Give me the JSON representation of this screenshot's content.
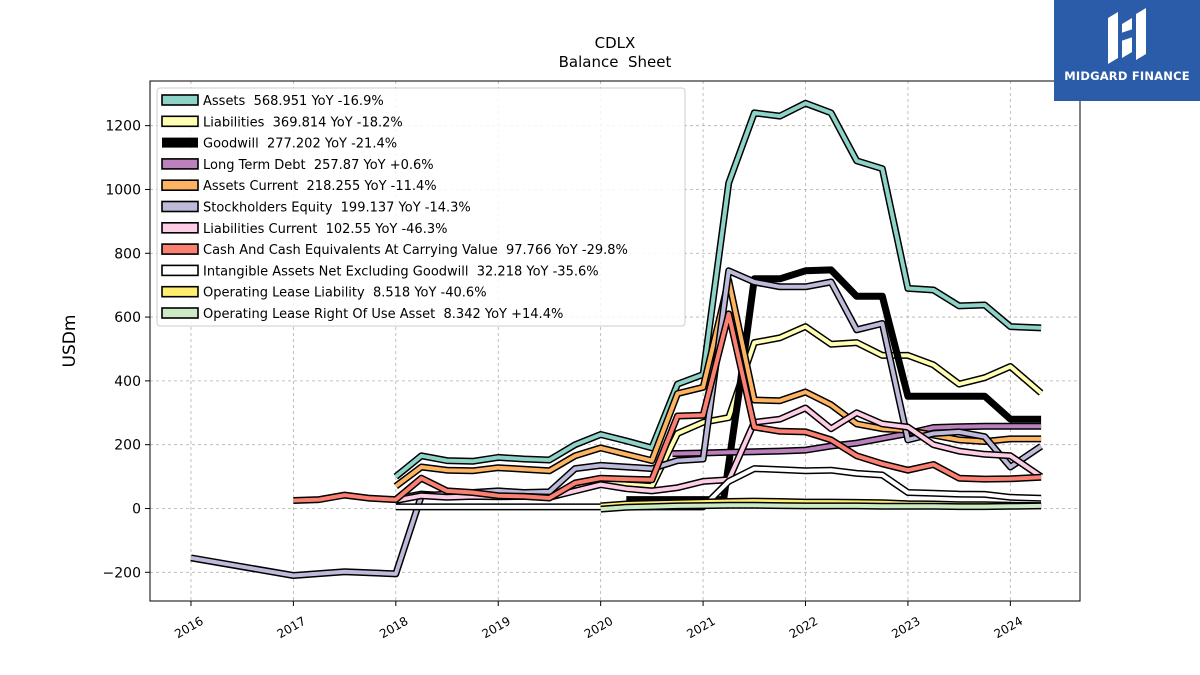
{
  "logo": {
    "text": "MIDGARD FINANCE",
    "bg": "#2a5caa"
  },
  "chart_data": {
    "type": "line",
    "title": "CDLX",
    "subtitle": "Balance  Sheet",
    "xlabel": "",
    "ylabel": "USDm",
    "xlim": [
      2015.6,
      2024.68
    ],
    "ylim": [
      -290,
      1340
    ],
    "yticks": [
      -200,
      0,
      200,
      400,
      600,
      800,
      1000,
      1200
    ],
    "yticklabels": [
      "−200",
      "0",
      "200",
      "400",
      "600",
      "800",
      "1000",
      "1200"
    ],
    "xticks": [
      2016,
      2017,
      2018,
      2019,
      2020,
      2021,
      2022,
      2023,
      2024
    ],
    "xticklabels": [
      "2016",
      "2017",
      "2018",
      "2019",
      "2020",
      "2021",
      "2022",
      "2023",
      "2024"
    ],
    "grid": true,
    "legend_position": "top-left",
    "series": [
      {
        "name": "Assets",
        "legend": "Assets  568.951 YoY -16.9%",
        "color": "#8dd3c7",
        "width": 4,
        "points": [
          [
            2018.0,
            100
          ],
          [
            2018.25,
            165
          ],
          [
            2018.5,
            150
          ],
          [
            2018.75,
            148
          ],
          [
            2019.0,
            160
          ],
          [
            2019.25,
            155
          ],
          [
            2019.5,
            152
          ],
          [
            2019.75,
            200
          ],
          [
            2020.0,
            232
          ],
          [
            2020.25,
            212
          ],
          [
            2020.5,
            190
          ],
          [
            2020.75,
            390
          ],
          [
            2021.0,
            420
          ],
          [
            2021.25,
            1020
          ],
          [
            2021.5,
            1240
          ],
          [
            2021.75,
            1230
          ],
          [
            2022.0,
            1270
          ],
          [
            2022.25,
            1240
          ],
          [
            2022.5,
            1090
          ],
          [
            2022.75,
            1065
          ],
          [
            2023.0,
            690
          ],
          [
            2023.25,
            685
          ],
          [
            2023.5,
            635
          ],
          [
            2023.75,
            638
          ],
          [
            2024.0,
            570
          ],
          [
            2024.3,
            566
          ]
        ]
      },
      {
        "name": "Liabilities",
        "legend": "Liabilities  369.814 YoY -18.2%",
        "color": "#ffffb3",
        "width": 4,
        "points": [
          [
            2018.0,
            30
          ],
          [
            2018.25,
            45
          ],
          [
            2018.5,
            40
          ],
          [
            2018.75,
            43
          ],
          [
            2019.0,
            42
          ],
          [
            2019.25,
            42
          ],
          [
            2019.5,
            40
          ],
          [
            2019.75,
            65
          ],
          [
            2020.0,
            85
          ],
          [
            2020.25,
            75
          ],
          [
            2020.5,
            70
          ],
          [
            2020.75,
            235
          ],
          [
            2021.0,
            270
          ],
          [
            2021.25,
            285
          ],
          [
            2021.5,
            520
          ],
          [
            2021.75,
            535
          ],
          [
            2022.0,
            570
          ],
          [
            2022.25,
            515
          ],
          [
            2022.5,
            520
          ],
          [
            2022.75,
            480
          ],
          [
            2023.0,
            480
          ],
          [
            2023.25,
            450
          ],
          [
            2023.5,
            390
          ],
          [
            2023.75,
            410
          ],
          [
            2024.0,
            445
          ],
          [
            2024.3,
            362
          ]
        ]
      },
      {
        "name": "Goodwill",
        "legend": "Goodwill  277.202 YoY -21.4%",
        "color": "#000000",
        "width": 7,
        "points": [
          [
            2020.25,
            28
          ],
          [
            2020.5,
            28
          ],
          [
            2020.75,
            28
          ],
          [
            2021.0,
            28
          ],
          [
            2021.2,
            28
          ],
          [
            2021.35,
            360
          ],
          [
            2021.5,
            720
          ],
          [
            2021.75,
            720
          ],
          [
            2022.0,
            745
          ],
          [
            2022.25,
            748
          ],
          [
            2022.5,
            665
          ],
          [
            2022.75,
            665
          ],
          [
            2023.0,
            352
          ],
          [
            2023.25,
            352
          ],
          [
            2023.5,
            352
          ],
          [
            2023.75,
            352
          ],
          [
            2024.0,
            280
          ],
          [
            2024.3,
            280
          ]
        ]
      },
      {
        "name": "Long Term Debt",
        "legend": "Long Term Debt  257.87 YoY +0.6%",
        "color": "#bc80bd",
        "width": 4,
        "points": [
          [
            2020.7,
            172
          ],
          [
            2021.0,
            174
          ],
          [
            2021.25,
            176
          ],
          [
            2021.5,
            178
          ],
          [
            2021.75,
            180
          ],
          [
            2022.0,
            183
          ],
          [
            2022.25,
            196
          ],
          [
            2022.5,
            205
          ],
          [
            2022.75,
            220
          ],
          [
            2023.0,
            235
          ],
          [
            2023.25,
            254
          ],
          [
            2023.5,
            256
          ],
          [
            2023.75,
            258
          ],
          [
            2024.0,
            258
          ],
          [
            2024.3,
            258
          ]
        ]
      },
      {
        "name": "Assets Current",
        "legend": "Assets Current  218.255 YoY -11.4%",
        "color": "#fdb462",
        "width": 4,
        "points": [
          [
            2018.0,
            70
          ],
          [
            2018.25,
            130
          ],
          [
            2018.5,
            120
          ],
          [
            2018.75,
            118
          ],
          [
            2019.0,
            128
          ],
          [
            2019.25,
            123
          ],
          [
            2019.5,
            118
          ],
          [
            2019.75,
            165
          ],
          [
            2020.0,
            190
          ],
          [
            2020.25,
            170
          ],
          [
            2020.5,
            150
          ],
          [
            2020.75,
            360
          ],
          [
            2021.0,
            380
          ],
          [
            2021.25,
            715
          ],
          [
            2021.5,
            340
          ],
          [
            2021.75,
            338
          ],
          [
            2022.0,
            365
          ],
          [
            2022.25,
            325
          ],
          [
            2022.5,
            265
          ],
          [
            2022.75,
            250
          ],
          [
            2023.0,
            245
          ],
          [
            2023.25,
            230
          ],
          [
            2023.5,
            215
          ],
          [
            2023.75,
            210
          ],
          [
            2024.0,
            218
          ],
          [
            2024.3,
            218
          ]
        ]
      },
      {
        "name": "Stockholders Equity",
        "legend": "Stockholders Equity  199.137 YoY -14.3%",
        "color": "#bebada",
        "width": 4,
        "points": [
          [
            2016.0,
            -155
          ],
          [
            2017.0,
            -210
          ],
          [
            2017.5,
            -198
          ],
          [
            2018.0,
            -205
          ],
          [
            2018.25,
            40
          ],
          [
            2018.5,
            45
          ],
          [
            2018.75,
            50
          ],
          [
            2019.0,
            55
          ],
          [
            2019.25,
            50
          ],
          [
            2019.5,
            52
          ],
          [
            2019.75,
            125
          ],
          [
            2020.0,
            135
          ],
          [
            2020.25,
            130
          ],
          [
            2020.5,
            125
          ],
          [
            2020.75,
            150
          ],
          [
            2021.0,
            155
          ],
          [
            2021.25,
            745
          ],
          [
            2021.5,
            710
          ],
          [
            2021.75,
            695
          ],
          [
            2022.0,
            695
          ],
          [
            2022.25,
            710
          ],
          [
            2022.5,
            560
          ],
          [
            2022.75,
            580
          ],
          [
            2023.0,
            215
          ],
          [
            2023.25,
            235
          ],
          [
            2023.5,
            240
          ],
          [
            2023.75,
            225
          ],
          [
            2024.0,
            130
          ],
          [
            2024.3,
            195
          ]
        ]
      },
      {
        "name": "Liabilities Current",
        "legend": "Liabilities Current  102.55 YoY -46.3%",
        "color": "#fccde5",
        "width": 4,
        "points": [
          [
            2018.0,
            25
          ],
          [
            2018.25,
            40
          ],
          [
            2018.5,
            35
          ],
          [
            2018.75,
            38
          ],
          [
            2019.0,
            37
          ],
          [
            2019.25,
            38
          ],
          [
            2019.5,
            35
          ],
          [
            2019.75,
            55
          ],
          [
            2020.0,
            75
          ],
          [
            2020.25,
            62
          ],
          [
            2020.5,
            55
          ],
          [
            2020.75,
            65
          ],
          [
            2021.0,
            85
          ],
          [
            2021.25,
            90
          ],
          [
            2021.5,
            270
          ],
          [
            2021.75,
            280
          ],
          [
            2022.0,
            315
          ],
          [
            2022.25,
            250
          ],
          [
            2022.5,
            300
          ],
          [
            2022.75,
            265
          ],
          [
            2023.0,
            255
          ],
          [
            2023.25,
            200
          ],
          [
            2023.5,
            180
          ],
          [
            2023.75,
            170
          ],
          [
            2024.0,
            165
          ],
          [
            2024.3,
            100
          ]
        ]
      },
      {
        "name": "Cash And Cash Equivalents At Carrying Value",
        "legend": "Cash And Cash Equivalents At Carrying Value  97.766 YoY -29.8%",
        "color": "#fb8072",
        "width": 4,
        "points": [
          [
            2017.0,
            25
          ],
          [
            2017.25,
            28
          ],
          [
            2017.5,
            42
          ],
          [
            2017.75,
            32
          ],
          [
            2018.0,
            28
          ],
          [
            2018.25,
            95
          ],
          [
            2018.5,
            55
          ],
          [
            2018.75,
            50
          ],
          [
            2019.0,
            40
          ],
          [
            2019.25,
            38
          ],
          [
            2019.5,
            33
          ],
          [
            2019.75,
            80
          ],
          [
            2020.0,
            95
          ],
          [
            2020.25,
            92
          ],
          [
            2020.5,
            90
          ],
          [
            2020.75,
            290
          ],
          [
            2021.0,
            292
          ],
          [
            2021.25,
            610
          ],
          [
            2021.5,
            255
          ],
          [
            2021.75,
            242
          ],
          [
            2022.0,
            240
          ],
          [
            2022.25,
            215
          ],
          [
            2022.5,
            165
          ],
          [
            2022.75,
            140
          ],
          [
            2023.0,
            120
          ],
          [
            2023.25,
            138
          ],
          [
            2023.5,
            95
          ],
          [
            2023.75,
            92
          ],
          [
            2024.0,
            93
          ],
          [
            2024.3,
            98
          ]
        ]
      },
      {
        "name": "Intangible Assets Net Excluding Goodwill",
        "legend": "Intangible Assets Net Excluding Goodwill  32.218 YoY -35.6%",
        "color": "#ffffff",
        "width": 4,
        "points": [
          [
            2018.0,
            5
          ],
          [
            2018.25,
            5
          ],
          [
            2018.5,
            5
          ],
          [
            2018.75,
            5
          ],
          [
            2019.0,
            5
          ],
          [
            2019.25,
            5
          ],
          [
            2019.5,
            5
          ],
          [
            2019.75,
            5
          ],
          [
            2020.0,
            5
          ],
          [
            2020.25,
            5
          ],
          [
            2020.5,
            5
          ],
          [
            2020.75,
            5
          ],
          [
            2021.0,
            5
          ],
          [
            2021.25,
            85
          ],
          [
            2021.5,
            125
          ],
          [
            2021.75,
            122
          ],
          [
            2022.0,
            118
          ],
          [
            2022.25,
            120
          ],
          [
            2022.5,
            110
          ],
          [
            2022.75,
            105
          ],
          [
            2023.0,
            50
          ],
          [
            2023.25,
            48
          ],
          [
            2023.5,
            45
          ],
          [
            2023.75,
            44
          ],
          [
            2024.0,
            35
          ],
          [
            2024.3,
            32
          ]
        ]
      },
      {
        "name": "Operating Lease Liability",
        "legend": "Operating Lease Liability  8.518 YoY -40.6%",
        "color": "#ffed6f",
        "width": 4,
        "points": [
          [
            2020.0,
            8
          ],
          [
            2020.25,
            14
          ],
          [
            2020.5,
            16
          ],
          [
            2020.75,
            18
          ],
          [
            2021.0,
            20
          ],
          [
            2021.25,
            22
          ],
          [
            2021.5,
            23
          ],
          [
            2021.75,
            22
          ],
          [
            2022.0,
            20
          ],
          [
            2022.25,
            20
          ],
          [
            2022.5,
            19
          ],
          [
            2022.75,
            18
          ],
          [
            2023.0,
            15
          ],
          [
            2023.25,
            14
          ],
          [
            2023.5,
            12
          ],
          [
            2023.75,
            12
          ],
          [
            2024.0,
            10
          ],
          [
            2024.3,
            9
          ]
        ]
      },
      {
        "name": "Operating Lease Right Of Use Asset",
        "legend": "Operating Lease Right Of Use Asset  8.342 YoY +14.4%",
        "color": "#ccebc5",
        "width": 4,
        "points": [
          [
            2020.0,
            -2
          ],
          [
            2020.25,
            4
          ],
          [
            2020.5,
            6
          ],
          [
            2020.75,
            8
          ],
          [
            2021.0,
            9
          ],
          [
            2021.25,
            10
          ],
          [
            2021.5,
            10
          ],
          [
            2021.75,
            9
          ],
          [
            2022.0,
            8
          ],
          [
            2022.25,
            8
          ],
          [
            2022.5,
            8
          ],
          [
            2022.75,
            7
          ],
          [
            2023.0,
            7
          ],
          [
            2023.25,
            7
          ],
          [
            2023.5,
            6
          ],
          [
            2023.75,
            6
          ],
          [
            2024.0,
            7
          ],
          [
            2024.3,
            8
          ]
        ]
      }
    ]
  }
}
